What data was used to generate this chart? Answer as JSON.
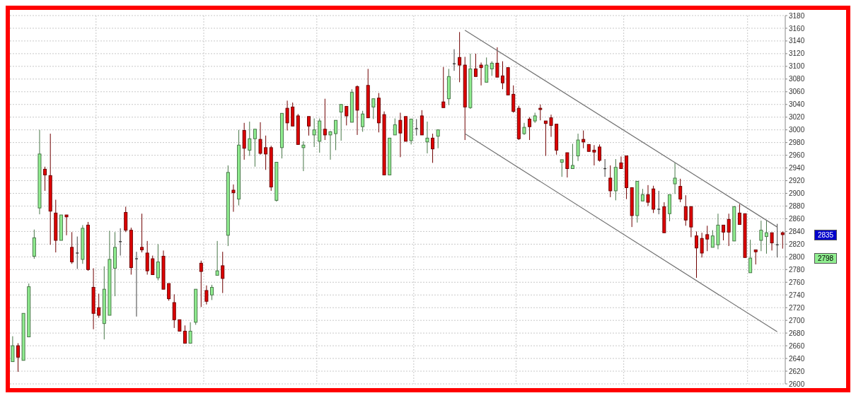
{
  "chart_data": {
    "type": "candlestick",
    "categories": [
      null,
      null,
      null,
      null,
      null,
      null,
      null,
      null,
      null,
      null,
      null,
      null,
      null,
      null,
      null,
      null,
      null,
      null,
      null,
      null,
      null,
      null,
      null,
      null,
      null,
      null,
      null,
      null,
      null,
      null,
      null,
      null,
      null,
      null,
      null,
      null,
      null,
      null,
      null,
      null,
      null,
      null,
      null,
      null,
      null,
      null,
      null,
      null,
      null,
      null,
      null,
      null,
      null,
      null,
      null,
      null,
      null,
      null,
      null,
      null,
      null,
      null,
      null,
      null,
      null,
      null,
      null,
      null,
      null,
      null,
      null,
      null,
      null,
      null,
      null,
      null,
      null,
      null,
      null,
      null,
      null,
      null,
      null,
      null,
      null,
      null,
      null,
      null,
      null,
      null,
      null,
      null,
      null,
      null,
      null,
      null,
      null,
      null,
      null,
      null,
      null,
      null,
      null,
      null,
      null,
      null,
      null,
      null,
      null,
      null,
      null,
      null,
      null,
      null,
      null,
      null,
      null,
      null,
      null,
      null,
      null,
      null,
      null,
      null,
      null,
      null,
      null,
      null,
      null,
      null,
      null,
      null,
      null,
      null,
      null,
      null,
      null,
      null,
      null,
      null,
      null,
      null,
      null,
      null
    ],
    "ohlc": [
      [
        2635,
        2675,
        2635,
        2660
      ],
      [
        2660,
        2664,
        2619,
        2642
      ],
      [
        2637,
        2711,
        2637,
        2711
      ],
      [
        2674,
        2758,
        2674,
        2753
      ],
      [
        2801,
        2843,
        2797,
        2830
      ],
      [
        2877,
        3000,
        2867,
        2962
      ],
      [
        2938,
        2942,
        2904,
        2929
      ],
      [
        2928,
        2994,
        2819,
        2872
      ],
      [
        2869,
        2890,
        2807,
        2826
      ],
      [
        2826,
        2866,
        2826,
        2866
      ],
      [
        2866,
        2866,
        2834,
        2863
      ],
      [
        2815,
        2839,
        2789,
        2792
      ],
      [
        2806,
        2832,
        2781,
        2806
      ],
      [
        2796,
        2850,
        2789,
        2845
      ],
      [
        2850,
        2855,
        2778,
        2780
      ],
      [
        2752,
        2782,
        2686,
        2711
      ],
      [
        2720,
        2742,
        2704,
        2708
      ],
      [
        2695,
        2785,
        2670,
        2749
      ],
      [
        2708,
        2841,
        2708,
        2796
      ],
      [
        2782,
        2839,
        2738,
        2815
      ],
      [
        2824,
        2845,
        2802,
        2824
      ],
      [
        2870,
        2879,
        2839,
        2842
      ],
      [
        2842,
        2846,
        2772,
        2783
      ],
      [
        2797,
        2808,
        2706,
        2797
      ],
      [
        2815,
        2868,
        2807,
        2811
      ],
      [
        2806,
        2825,
        2772,
        2778
      ],
      [
        2797,
        2802,
        2772,
        2772
      ],
      [
        2767,
        2820,
        2763,
        2792
      ],
      [
        2801,
        2810,
        2749,
        2749
      ],
      [
        2758,
        2758,
        2731,
        2734
      ],
      [
        2728,
        2741,
        2688,
        2701
      ],
      [
        2701,
        2701,
        2683,
        2683
      ],
      [
        2683,
        2692,
        2664,
        2664
      ],
      [
        2664,
        2697,
        2664,
        2683
      ],
      [
        2697,
        2749,
        2693,
        2749
      ],
      [
        2790,
        2794,
        2721,
        2777
      ],
      [
        2747,
        2755,
        2725,
        2730
      ],
      [
        2740,
        2756,
        2732,
        2752
      ],
      [
        2771,
        2825,
        2771,
        2778
      ],
      [
        2786,
        2808,
        2743,
        2766
      ],
      [
        2834,
        2944,
        2817,
        2933
      ],
      [
        2905,
        2914,
        2871,
        2901
      ],
      [
        2891,
        3000,
        2881,
        2976
      ],
      [
        2999,
        3011,
        2953,
        2971
      ],
      [
        2968,
        3013,
        2959,
        2986
      ],
      [
        2986,
        3001,
        2942,
        3001
      ],
      [
        2985,
        3012,
        2961,
        2963
      ],
      [
        2972,
        2991,
        2937,
        2962
      ],
      [
        2972,
        2975,
        2904,
        2910
      ],
      [
        2889,
        2949,
        2887,
        2949
      ],
      [
        2972,
        3026,
        2955,
        3026
      ],
      [
        3034,
        3046,
        2999,
        3011
      ],
      [
        3036,
        3043,
        3006,
        3006
      ],
      [
        3022,
        3025,
        2977,
        2977
      ],
      [
        2972,
        2982,
        2935,
        2976
      ],
      [
        3021,
        3021,
        2991,
        3006
      ],
      [
        2992,
        3018,
        2973,
        3000
      ],
      [
        2982,
        3018,
        2964,
        3014
      ],
      [
        3001,
        3049,
        2984,
        2992
      ],
      [
        2992,
        2998,
        2953,
        2997
      ],
      [
        2994,
        3015,
        2968,
        3015
      ],
      [
        3028,
        3040,
        2983,
        3040
      ],
      [
        3037,
        3037,
        3007,
        3022
      ],
      [
        3012,
        3064,
        3012,
        3059
      ],
      [
        3068,
        3070,
        2992,
        3031
      ],
      [
        3005,
        3030,
        2997,
        3025
      ],
      [
        3070,
        3096,
        3019,
        3019
      ],
      [
        3036,
        3049,
        3017,
        3049
      ],
      [
        3050,
        3058,
        2996,
        3011
      ],
      [
        3024,
        3029,
        2929,
        2929
      ],
      [
        2929,
        2987,
        2929,
        2987
      ],
      [
        2992,
        3018,
        2992,
        3008
      ],
      [
        3015,
        3027,
        2957,
        2995
      ],
      [
        3021,
        3021,
        2982,
        2982
      ],
      [
        2983,
        3017,
        2977,
        3017
      ],
      [
        3002,
        3017,
        2991,
        3002
      ],
      [
        3022,
        3031,
        2992,
        2992
      ],
      [
        2981,
        3013,
        2963,
        2987
      ],
      [
        2987,
        2994,
        2948,
        2970
      ],
      [
        2990,
        3000,
        2971,
        3000
      ],
      [
        3044,
        3099,
        3035,
        3035
      ],
      [
        3049,
        3096,
        3039,
        3084
      ],
      [
        3104,
        3127,
        3093,
        3104
      ],
      [
        3114,
        3154,
        3075,
        3102
      ],
      [
        3102,
        3115,
        2984,
        3036
      ],
      [
        3035,
        3120,
        3033,
        3096
      ],
      [
        3096,
        3120,
        3084,
        3084
      ],
      [
        3102,
        3106,
        3070,
        3098
      ],
      [
        3075,
        3114,
        3075,
        3102
      ],
      [
        3096,
        3108,
        3085,
        3105
      ],
      [
        3105,
        3130,
        3083,
        3083
      ],
      [
        3085,
        3108,
        3064,
        3074
      ],
      [
        3098,
        3098,
        3055,
        3055
      ],
      [
        3056,
        3070,
        3027,
        3029
      ],
      [
        3034,
        3038,
        2984,
        2986
      ],
      [
        2994,
        3011,
        2992,
        3004
      ],
      [
        3017,
        3020,
        2984,
        3005
      ],
      [
        3014,
        3027,
        3011,
        3022
      ],
      [
        3034,
        3040,
        3015,
        3032
      ],
      [
        3014,
        3014,
        2959,
        3010
      ],
      [
        3019,
        3024,
        2989,
        3007
      ],
      [
        3009,
        3009,
        2961,
        2968
      ],
      [
        2949,
        2953,
        2926,
        2953
      ],
      [
        2964,
        2964,
        2925,
        2939
      ],
      [
        2939,
        2978,
        2939,
        2944
      ],
      [
        2959,
        2994,
        2951,
        2984
      ],
      [
        2985,
        2999,
        2971,
        2981
      ],
      [
        2977,
        2977,
        2966,
        2966
      ],
      [
        2968,
        2976,
        2944,
        2965
      ],
      [
        2973,
        2977,
        2950,
        2952
      ],
      [
        2939,
        2954,
        2926,
        2939
      ],
      [
        2924,
        2944,
        2894,
        2904
      ],
      [
        2904,
        2954,
        2889,
        2941
      ],
      [
        2948,
        2958,
        2939,
        2939
      ],
      [
        2959,
        2959,
        2891,
        2909
      ],
      [
        2909,
        2909,
        2847,
        2865
      ],
      [
        2865,
        2919,
        2854,
        2919
      ],
      [
        2888,
        2907,
        2888,
        2898
      ],
      [
        2898,
        2913,
        2880,
        2886
      ],
      [
        2907,
        2912,
        2869,
        2875
      ],
      [
        2875,
        2904,
        2867,
        2875
      ],
      [
        2879,
        2886,
        2838,
        2838
      ],
      [
        2868,
        2898,
        2856,
        2898
      ],
      [
        2915,
        2948,
        2899,
        2924
      ],
      [
        2911,
        2923,
        2886,
        2891
      ],
      [
        2879,
        2897,
        2849,
        2858
      ],
      [
        2879,
        2880,
        2831,
        2847
      ],
      [
        2833,
        2840,
        2767,
        2814
      ],
      [
        2829,
        2838,
        2799,
        2806
      ],
      [
        2835,
        2849,
        2809,
        2828
      ],
      [
        2815,
        2842,
        2815,
        2833
      ],
      [
        2819,
        2868,
        2812,
        2850
      ],
      [
        2850,
        2850,
        2826,
        2839
      ],
      [
        2859,
        2868,
        2817,
        2839
      ],
      [
        2825,
        2880,
        2825,
        2879
      ],
      [
        2869,
        2883,
        2851,
        2851
      ],
      [
        2868,
        2868,
        2799,
        2799
      ],
      [
        2775,
        2827,
        2775,
        2798
      ],
      [
        2811,
        2811,
        2788,
        2808
      ],
      [
        2826,
        2857,
        2809,
        2842
      ],
      [
        2832,
        2857,
        2805,
        2838
      ],
      [
        2838,
        2838,
        2810,
        2822
      ],
      [
        2819,
        2852,
        2799,
        2819
      ],
      [
        2838,
        2840,
        2813,
        2835
      ]
    ],
    "colors": [
      "#90ee90",
      "#e00000",
      "#90ee90",
      "#90ee90",
      "#90ee90",
      "#90ee90",
      "#e00000",
      "#e00000",
      "#e00000",
      "#90ee90",
      "#e00000",
      "#e00000",
      "#404040",
      "#90ee90",
      "#e00000",
      "#e00000",
      "#e00000",
      "#90ee90",
      "#90ee90",
      "#90ee90",
      "#404040",
      "#e00000",
      "#e00000",
      "#404040",
      "#e00000",
      "#e00000",
      "#e00000",
      "#90ee90",
      "#e00000",
      "#e00000",
      "#e00000",
      "#e00000",
      "#e00000",
      "#90ee90",
      "#90ee90",
      "#e00000",
      "#e00000",
      "#90ee90",
      "#90ee90",
      "#e00000",
      "#90ee90",
      "#e00000",
      "#90ee90",
      "#e00000",
      "#90ee90",
      "#90ee90",
      "#e00000",
      "#e00000",
      "#e00000",
      "#90ee90",
      "#90ee90",
      "#e00000",
      "#e00000",
      "#e00000",
      "#90ee90",
      "#e00000",
      "#90ee90",
      "#90ee90",
      "#e00000",
      "#90ee90",
      "#90ee90",
      "#90ee90",
      "#e00000",
      "#90ee90",
      "#e00000",
      "#90ee90",
      "#e00000",
      "#90ee90",
      "#e00000",
      "#e00000",
      "#90ee90",
      "#90ee90",
      "#e00000",
      "#e00000",
      "#90ee90",
      "#404040",
      "#e00000",
      "#90ee90",
      "#e00000",
      "#90ee90",
      "#e00000",
      "#90ee90",
      "#404040",
      "#e00000",
      "#e00000",
      "#90ee90",
      "#e00000",
      "#e00000",
      "#90ee90",
      "#90ee90",
      "#e00000",
      "#e00000",
      "#e00000",
      "#e00000",
      "#e00000",
      "#90ee90",
      "#e00000",
      "#90ee90",
      "#e00000",
      "#e00000",
      "#e00000",
      "#e00000",
      "#90ee90",
      "#e00000",
      "#90ee90",
      "#90ee90",
      "#e00000",
      "#e00000",
      "#e00000",
      "#e00000",
      "#404040",
      "#e00000",
      "#90ee90",
      "#e00000",
      "#e00000",
      "#e00000",
      "#90ee90",
      "#90ee90",
      "#e00000",
      "#e00000",
      "#404040",
      "#e00000",
      "#90ee90",
      "#90ee90",
      "#e00000",
      "#e00000",
      "#e00000",
      "#e00000",
      "#e00000",
      "#e00000",
      "#90ee90",
      "#90ee90",
      "#e00000",
      "#e00000",
      "#90ee90",
      "#e00000",
      "#e00000",
      "#90ee90",
      "#e00000",
      "#90ee90",
      "#90ee90",
      "#e00000",
      "#404040",
      "#e00000"
    ],
    "series": [
      {
        "type": "line",
        "color": "#707070",
        "values": [
          null,
          null,
          null,
          null,
          null,
          null,
          null,
          null,
          null,
          null,
          null,
          null,
          null,
          null,
          null,
          null,
          null,
          null,
          null,
          null,
          null,
          null,
          null,
          null,
          null,
          null,
          null,
          null,
          null,
          null,
          null,
          null,
          null,
          null,
          null,
          null,
          null,
          null,
          null,
          null,
          null,
          null,
          null,
          null,
          null,
          null,
          null,
          null,
          null,
          null,
          null,
          null,
          null,
          null,
          null,
          null,
          null,
          null,
          null,
          null,
          null,
          null,
          null,
          null,
          null,
          null,
          null,
          null,
          null,
          null,
          null,
          null,
          null,
          null,
          null,
          null,
          null,
          null,
          null,
          null,
          null,
          null,
          null,
          null,
          3157,
          null,
          null,
          null,
          null,
          null,
          null,
          null,
          null,
          null,
          null,
          null,
          null,
          null,
          null,
          null,
          null,
          null,
          null,
          null,
          null,
          null,
          null,
          null,
          null,
          null,
          null,
          null,
          null,
          null,
          null,
          null,
          null,
          null,
          null,
          null,
          null,
          null,
          null,
          null,
          null,
          null,
          null,
          null,
          null,
          null,
          null,
          null,
          null,
          null,
          null,
          null,
          null,
          null,
          null,
          null,
          null,
          null,
          2847,
          null
        ]
      },
      {
        "type": "line",
        "color": "#707070",
        "values": [
          null,
          null,
          null,
          null,
          null,
          null,
          null,
          null,
          null,
          null,
          null,
          null,
          null,
          null,
          null,
          null,
          null,
          null,
          null,
          null,
          null,
          null,
          null,
          null,
          null,
          null,
          null,
          null,
          null,
          null,
          null,
          null,
          null,
          null,
          null,
          null,
          null,
          null,
          null,
          null,
          null,
          null,
          null,
          null,
          null,
          null,
          null,
          null,
          null,
          null,
          null,
          null,
          null,
          null,
          null,
          null,
          null,
          null,
          null,
          null,
          null,
          null,
          null,
          null,
          null,
          null,
          null,
          null,
          null,
          null,
          null,
          null,
          null,
          null,
          null,
          null,
          null,
          null,
          null,
          null,
          null,
          null,
          null,
          null,
          2994,
          null,
          null,
          null,
          null,
          null,
          null,
          null,
          null,
          null,
          null,
          null,
          null,
          null,
          null,
          null,
          null,
          null,
          null,
          null,
          null,
          null,
          null,
          null,
          null,
          null,
          null,
          null,
          null,
          null,
          null,
          null,
          null,
          null,
          null,
          null,
          null,
          null,
          null,
          null,
          null,
          null,
          null,
          null,
          null,
          null,
          null,
          null,
          null,
          null,
          null,
          null,
          null,
          null,
          null,
          null,
          null,
          null,
          2682,
          null
        ]
      }
    ],
    "annotations": [
      "2835",
      "2798"
    ],
    "ylim": [
      2600,
      3180
    ],
    "yticks": [
      2600,
      2620,
      2640,
      2660,
      2680,
      2700,
      2720,
      2740,
      2760,
      2780,
      2800,
      2820,
      2840,
      2860,
      2880,
      2900,
      2920,
      2940,
      2960,
      2980,
      3000,
      3020,
      3040,
      3060,
      3080,
      3100,
      3120,
      3140,
      3160,
      3180
    ],
    "grid": true,
    "tick_labels": "y"
  }
}
